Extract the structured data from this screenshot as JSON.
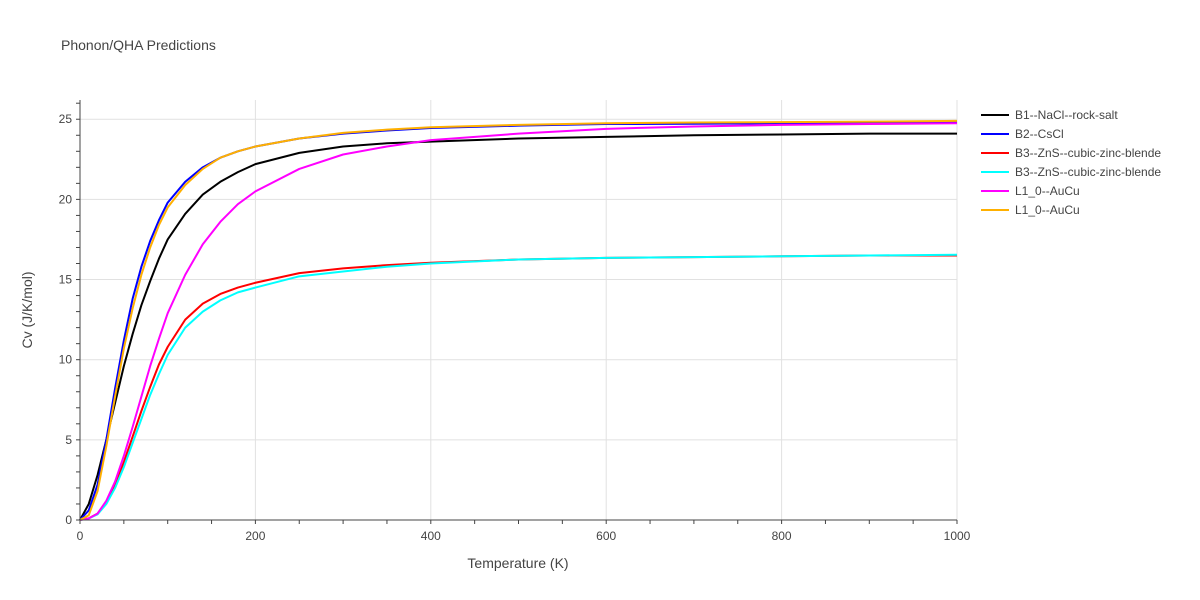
{
  "chart_data": {
    "type": "line",
    "title": "Phonon/QHA Predictions",
    "xlabel": "Temperature (K)",
    "ylabel": "Cv (J/K/mol)",
    "xlim": [
      0,
      1000
    ],
    "ylim": [
      0,
      26.2
    ],
    "xticks": [
      0,
      200,
      400,
      600,
      800,
      1000
    ],
    "yticks": [
      0,
      5,
      10,
      15,
      20,
      25
    ],
    "grid": true,
    "legend_position": "right",
    "x": [
      0,
      10,
      20,
      30,
      40,
      50,
      60,
      70,
      80,
      90,
      100,
      120,
      140,
      160,
      180,
      200,
      250,
      300,
      350,
      400,
      500,
      600,
      700,
      800,
      900,
      1000
    ],
    "series": [
      {
        "name": "B1--NaCl--rock-salt",
        "color": "#000000",
        "values": [
          0,
          1.0,
          2.8,
          5.0,
          7.3,
          9.6,
          11.6,
          13.4,
          14.9,
          16.3,
          17.5,
          19.1,
          20.3,
          21.1,
          21.7,
          22.2,
          22.9,
          23.3,
          23.5,
          23.6,
          23.8,
          23.9,
          24.0,
          24.05,
          24.1,
          24.1
        ]
      },
      {
        "name": "B2--CsCl",
        "color": "#0000ff",
        "values": [
          0,
          0.6,
          2.2,
          5.0,
          8.2,
          11.2,
          13.8,
          15.8,
          17.4,
          18.7,
          19.8,
          21.1,
          22.0,
          22.6,
          23.0,
          23.3,
          23.8,
          24.1,
          24.3,
          24.45,
          24.6,
          24.7,
          24.72,
          24.75,
          24.78,
          24.8
        ]
      },
      {
        "name": "B3--ZnS--cubic-zinc-blende",
        "color": "#ff0000",
        "values": [
          0,
          0.1,
          0.4,
          1.1,
          2.2,
          3.6,
          5.2,
          6.8,
          8.3,
          9.7,
          10.8,
          12.5,
          13.5,
          14.1,
          14.5,
          14.8,
          15.4,
          15.7,
          15.9,
          16.05,
          16.25,
          16.35,
          16.4,
          16.45,
          16.5,
          16.5
        ]
      },
      {
        "name": "B3--ZnS--cubic-zinc-blende",
        "color": "#00ffff",
        "values": [
          0,
          0.1,
          0.35,
          1.0,
          2.0,
          3.3,
          4.8,
          6.3,
          7.8,
          9.1,
          10.3,
          12.0,
          13.0,
          13.7,
          14.2,
          14.5,
          15.2,
          15.5,
          15.8,
          16.0,
          16.25,
          16.35,
          16.4,
          16.45,
          16.5,
          16.55
        ]
      },
      {
        "name": "L1_0--AuCu",
        "color": "#ff00ff",
        "values": [
          0,
          0.1,
          0.4,
          1.2,
          2.4,
          4.0,
          5.8,
          7.7,
          9.6,
          11.3,
          12.9,
          15.3,
          17.2,
          18.6,
          19.7,
          20.5,
          21.9,
          22.8,
          23.3,
          23.7,
          24.1,
          24.4,
          24.55,
          24.65,
          24.7,
          24.75
        ]
      },
      {
        "name": "L1_0--AuCu",
        "color": "#ffb000",
        "values": [
          0,
          0.3,
          1.8,
          4.6,
          7.7,
          10.7,
          13.2,
          15.3,
          17.0,
          18.4,
          19.5,
          20.9,
          21.9,
          22.6,
          23.0,
          23.3,
          23.8,
          24.15,
          24.35,
          24.5,
          24.65,
          24.75,
          24.8,
          24.82,
          24.85,
          24.9
        ]
      }
    ]
  }
}
